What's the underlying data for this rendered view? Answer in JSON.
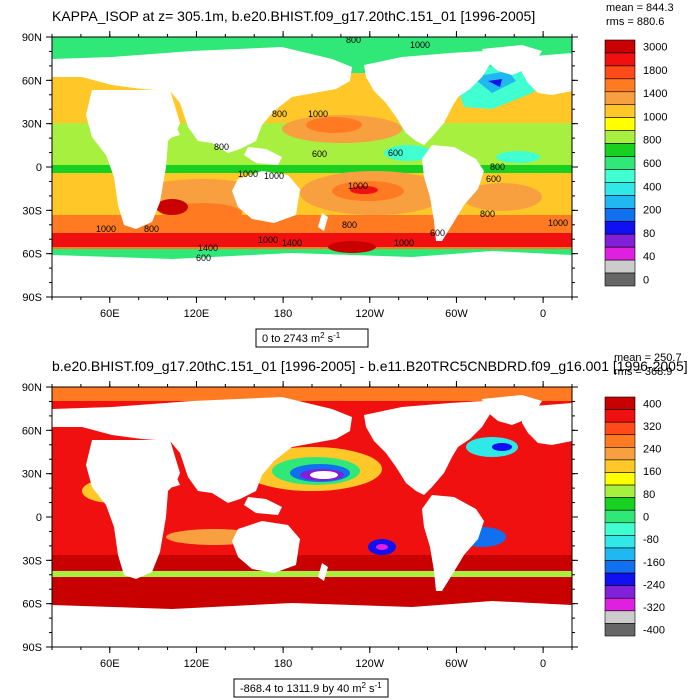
{
  "chart_data": [
    {
      "type": "heatmap",
      "title": "KAPPA_ISOP at z= 305.1m, b.e20.BHIST.f09_g17.20thC.151_01 [1996-2005]",
      "stats": {
        "mean": "mean = 844.3",
        "rms": "rms = 880.6"
      },
      "range_label": "0 to 2743",
      "units_label": "m",
      "units_sup1": "2",
      "units_rest": " s",
      "units_sup2": "-1",
      "x_ticks": [
        "60E",
        "120E",
        "180",
        "120W",
        "60W",
        "0"
      ],
      "y_ticks": [
        "90N",
        "60N",
        "30N",
        "0",
        "30S",
        "60S",
        "90S"
      ],
      "colorbar": {
        "labels": [
          "3000",
          "1800",
          "1400",
          "1000",
          "800",
          "600",
          "400",
          "200",
          "80",
          "40",
          "0"
        ],
        "colors": [
          "#c80000",
          "#f01010",
          "#ff4a1a",
          "#ff7a20",
          "#f8a040",
          "#ffc828",
          "#ffff00",
          "#a8f040",
          "#18d020",
          "#30e878",
          "#40ffd0",
          "#30e8e8",
          "#20b8f0",
          "#1070f0",
          "#1010f0",
          "#8020d8",
          "#e020e0",
          "#cccccc",
          "#666666"
        ]
      },
      "contour_labels": [
        "800",
        "1000",
        "800",
        "1000",
        "800",
        "600",
        "600",
        "800",
        "600",
        "1000",
        "1000",
        "1000",
        "800",
        "1000",
        "800",
        "1400",
        "1000",
        "800",
        "1400",
        "1000",
        "1000",
        "600",
        "600"
      ]
    },
    {
      "type": "heatmap",
      "title": "b.e20.BHIST.f09_g17.20thC.151_01 [1996-2005] - b.e11.B20TRC5CNBDRD.f09_g16.001 [1996-2005]",
      "stats": {
        "mean": "mean = 250.7",
        "rms": "rms = 368.9"
      },
      "range_label": "-868.4 to 1311.9 by 40",
      "units_label": "m",
      "units_sup1": "2",
      "units_rest": " s",
      "units_sup2": "-1",
      "x_ticks": [
        "60E",
        "120E",
        "180",
        "120W",
        "60W",
        "0"
      ],
      "y_ticks": [
        "90N",
        "60N",
        "30N",
        "0",
        "30S",
        "60S",
        "90S"
      ],
      "colorbar": {
        "labels": [
          "400",
          "320",
          "240",
          "160",
          "80",
          "0",
          "-80",
          "-160",
          "-240",
          "-320",
          "-400"
        ],
        "colors": [
          "#c80000",
          "#f01010",
          "#ff4a1a",
          "#ff7a20",
          "#f8a040",
          "#ffc828",
          "#ffff00",
          "#a8f040",
          "#18d020",
          "#30e878",
          "#40ffd0",
          "#30e8e8",
          "#20b8f0",
          "#1070f0",
          "#1010f0",
          "#8020d8",
          "#e020e0",
          "#cccccc",
          "#666666"
        ]
      }
    }
  ]
}
